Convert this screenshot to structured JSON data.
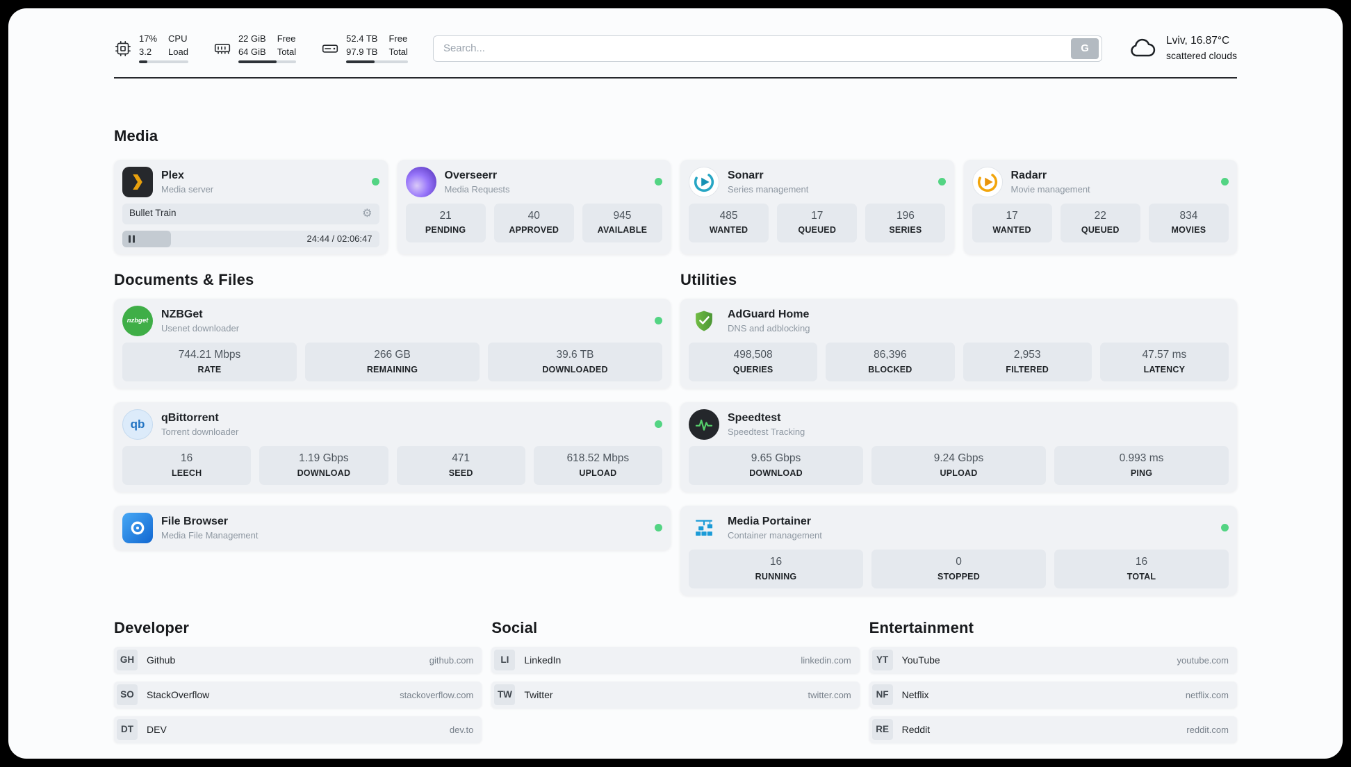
{
  "topbar": {
    "system": [
      {
        "icon": "cpu-icon",
        "primary": "17%",
        "secondary": "3.2",
        "label_top": "CPU",
        "label_bottom": "Load",
        "progress": 17
      },
      {
        "icon": "ram-icon",
        "primary": "22 GiB",
        "secondary": "64 GiB",
        "label_top": "Free",
        "label_bottom": "Total",
        "progress": 66
      },
      {
        "icon": "disk-icon",
        "primary": "52.4 TB",
        "secondary": "97.9 TB",
        "label_top": "Free",
        "label_bottom": "Total",
        "progress": 46
      }
    ],
    "search": {
      "placeholder": "Search...",
      "button_label": "G"
    },
    "weather": {
      "location": "Lviv, 16.87°C",
      "condition": "scattered clouds"
    }
  },
  "media": {
    "title": "Media",
    "plex": {
      "name": "Plex",
      "subtitle": "Media server",
      "online": true,
      "now_playing": "Bullet Train",
      "time": "24:44 / 02:06:47",
      "progress": 19
    },
    "overseerr": {
      "name": "Overseerr",
      "subtitle": "Media Requests",
      "online": true,
      "stats": [
        {
          "value": "21",
          "label": "PENDING"
        },
        {
          "value": "40",
          "label": "APPROVED"
        },
        {
          "value": "945",
          "label": "AVAILABLE"
        }
      ]
    },
    "sonarr": {
      "name": "Sonarr",
      "subtitle": "Series management",
      "online": true,
      "stats": [
        {
          "value": "485",
          "label": "WANTED"
        },
        {
          "value": "17",
          "label": "QUEUED"
        },
        {
          "value": "196",
          "label": "SERIES"
        }
      ]
    },
    "radarr": {
      "name": "Radarr",
      "subtitle": "Movie management",
      "online": true,
      "stats": [
        {
          "value": "17",
          "label": "WANTED"
        },
        {
          "value": "22",
          "label": "QUEUED"
        },
        {
          "value": "834",
          "label": "MOVIES"
        }
      ]
    }
  },
  "documents": {
    "title": "Documents & Files",
    "nzbget": {
      "name": "NZBGet",
      "subtitle": "Usenet downloader",
      "online": true,
      "stats": [
        {
          "value": "744.21 Mbps",
          "label": "RATE"
        },
        {
          "value": "266 GB",
          "label": "REMAINING"
        },
        {
          "value": "39.6 TB",
          "label": "DOWNLOADED"
        }
      ]
    },
    "qbittorrent": {
      "name": "qBittorrent",
      "subtitle": "Torrent downloader",
      "online": true,
      "stats": [
        {
          "value": "16",
          "label": "LEECH"
        },
        {
          "value": "1.19 Gbps",
          "label": "DOWNLOAD"
        },
        {
          "value": "471",
          "label": "SEED"
        },
        {
          "value": "618.52 Mbps",
          "label": "UPLOAD"
        }
      ]
    },
    "filebrowser": {
      "name": "File Browser",
      "subtitle": "Media File Management",
      "online": true
    }
  },
  "utilities": {
    "title": "Utilities",
    "adguard": {
      "name": "AdGuard Home",
      "subtitle": "DNS and adblocking",
      "stats": [
        {
          "value": "498,508",
          "label": "QUERIES"
        },
        {
          "value": "86,396",
          "label": "BLOCKED"
        },
        {
          "value": "2,953",
          "label": "FILTERED"
        },
        {
          "value": "47.57 ms",
          "label": "LATENCY"
        }
      ]
    },
    "speedtest": {
      "name": "Speedtest",
      "subtitle": "Speedtest Tracking",
      "stats": [
        {
          "value": "9.65 Gbps",
          "label": "DOWNLOAD"
        },
        {
          "value": "9.24 Gbps",
          "label": "UPLOAD"
        },
        {
          "value": "0.993 ms",
          "label": "PING"
        }
      ]
    },
    "portainer": {
      "name": "Media Portainer",
      "subtitle": "Container management",
      "online": true,
      "stats": [
        {
          "value": "16",
          "label": "RUNNING"
        },
        {
          "value": "0",
          "label": "STOPPED"
        },
        {
          "value": "16",
          "label": "TOTAL"
        }
      ]
    }
  },
  "bookmarks": [
    {
      "title": "Developer",
      "items": [
        {
          "abbr": "GH",
          "name": "Github",
          "url": "github.com"
        },
        {
          "abbr": "SO",
          "name": "StackOverflow",
          "url": "stackoverflow.com"
        },
        {
          "abbr": "DT",
          "name": "DEV",
          "url": "dev.to"
        }
      ]
    },
    {
      "title": "Social",
      "items": [
        {
          "abbr": "LI",
          "name": "LinkedIn",
          "url": "linkedin.com"
        },
        {
          "abbr": "TW",
          "name": "Twitter",
          "url": "twitter.com"
        }
      ]
    },
    {
      "title": "Entertainment",
      "items": [
        {
          "abbr": "YT",
          "name": "YouTube",
          "url": "youtube.com"
        },
        {
          "abbr": "NF",
          "name": "Netflix",
          "url": "netflix.com"
        },
        {
          "abbr": "RE",
          "name": "Reddit",
          "url": "reddit.com"
        }
      ]
    }
  ],
  "icons": {
    "nzbget_text": "nzbget",
    "qbittorrent_text": "qb"
  },
  "colors": {
    "status_online": "#53d483",
    "plex_accent": "#e8a00d",
    "board_bg": "#fbfcfd",
    "card_bg": "#f0f2f5",
    "stat_bg": "#e5e9ee"
  }
}
